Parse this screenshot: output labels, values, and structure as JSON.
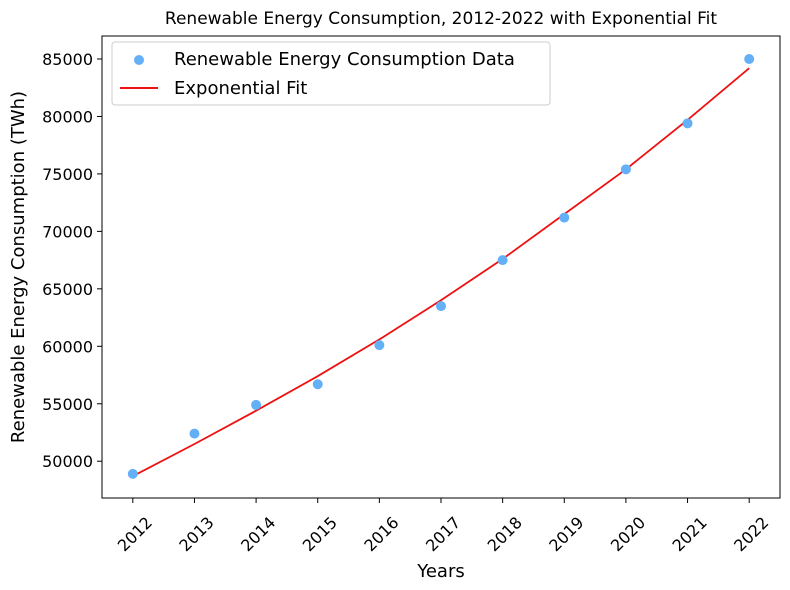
{
  "chart_data": {
    "type": "scatter",
    "title": "Renewable Energy Consumption, 2012-2022 with Exponential Fit",
    "xlabel": "Years",
    "ylabel": "Renewable Energy Consumption (TWh)",
    "x": [
      2012,
      2013,
      2014,
      2015,
      2016,
      2017,
      2018,
      2019,
      2020,
      2021,
      2022
    ],
    "xticks": [
      "2012",
      "2013",
      "2014",
      "2015",
      "2016",
      "2017",
      "2018",
      "2019",
      "2020",
      "2021",
      "2022"
    ],
    "yticks": [
      50000,
      55000,
      60000,
      65000,
      70000,
      75000,
      80000,
      85000
    ],
    "xlim": [
      2011.5,
      2022.5
    ],
    "ylim": [
      46800,
      87000
    ],
    "grid": false,
    "legend_position": "upper-left",
    "series": [
      {
        "name": "Renewable Energy Consumption Data",
        "kind": "scatter",
        "color": "#64b0f6",
        "x": [
          2012,
          2013,
          2014,
          2015,
          2016,
          2017,
          2018,
          2019,
          2020,
          2021,
          2022
        ],
        "values": [
          48900,
          52400,
          54900,
          56700,
          60100,
          63500,
          67500,
          71200,
          75400,
          79400,
          85000
        ]
      },
      {
        "name": "Exponential Fit",
        "kind": "line",
        "color": "#ee1111",
        "x": [
          2012,
          2013,
          2014,
          2015,
          2016,
          2017,
          2018,
          2019,
          2020,
          2021,
          2022
        ],
        "values": [
          48700,
          51500,
          54400,
          57400,
          60600,
          64000,
          67600,
          71500,
          75400,
          79700,
          84200
        ]
      }
    ]
  }
}
